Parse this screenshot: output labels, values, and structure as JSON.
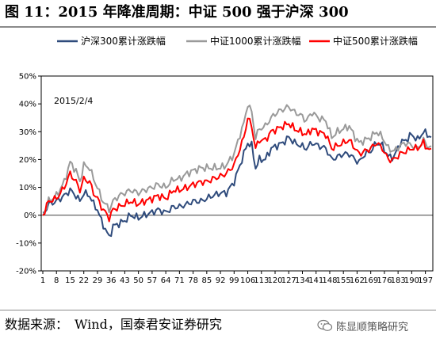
{
  "title": "图 11：2015 年降准周期：中证 500 强于沪深 300",
  "source": "数据来源：　Wind，国泰君安证券研究",
  "watermark": {
    "text": "陈显顺策略研究",
    "icon": "wechat-icon"
  },
  "chart_data": {
    "type": "line",
    "title": "",
    "xlabel": "",
    "ylabel": "",
    "annotation": "2015/2/4",
    "ylim": [
      -20,
      50
    ],
    "y_ticks": [
      "-20%",
      "-10%",
      "0%",
      "10%",
      "20%",
      "30%",
      "40%",
      "50%"
    ],
    "x_ticks": [
      "1",
      "8",
      "15",
      "22",
      "29",
      "36",
      "43",
      "50",
      "57",
      "64",
      "71",
      "78",
      "85",
      "92",
      "99",
      "106",
      "113",
      "120",
      "127",
      "134",
      "141",
      "148",
      "155",
      "162",
      "169",
      "176",
      "183",
      "190",
      "197"
    ],
    "x_count": 200,
    "grid": false,
    "legend_position": "top",
    "series": [
      {
        "name": "沪深300累计涨跌幅",
        "color": "#2f4b7c",
        "keypoints": [
          [
            1,
            0
          ],
          [
            4,
            4
          ],
          [
            8,
            5
          ],
          [
            12,
            7
          ],
          [
            15,
            9
          ],
          [
            18,
            7
          ],
          [
            20,
            5
          ],
          [
            22,
            8
          ],
          [
            25,
            7
          ],
          [
            27,
            4
          ],
          [
            29,
            2
          ],
          [
            31,
            -2
          ],
          [
            33,
            -5
          ],
          [
            35,
            -8
          ],
          [
            37,
            -4
          ],
          [
            40,
            -3
          ],
          [
            43,
            -2
          ],
          [
            46,
            0
          ],
          [
            50,
            -1
          ],
          [
            53,
            0
          ],
          [
            57,
            1
          ],
          [
            60,
            2
          ],
          [
            64,
            1
          ],
          [
            68,
            3
          ],
          [
            71,
            3
          ],
          [
            75,
            4
          ],
          [
            78,
            5
          ],
          [
            82,
            5
          ],
          [
            85,
            6
          ],
          [
            88,
            7
          ],
          [
            92,
            8
          ],
          [
            95,
            8
          ],
          [
            99,
            12
          ],
          [
            102,
            18
          ],
          [
            104,
            22
          ],
          [
            106,
            26
          ],
          [
            108,
            25
          ],
          [
            110,
            17
          ],
          [
            112,
            20
          ],
          [
            115,
            20
          ],
          [
            118,
            24
          ],
          [
            121,
            25
          ],
          [
            124,
            26
          ],
          [
            127,
            28
          ],
          [
            130,
            26
          ],
          [
            133,
            25
          ],
          [
            136,
            24
          ],
          [
            139,
            26
          ],
          [
            142,
            25
          ],
          [
            146,
            24
          ],
          [
            149,
            20
          ],
          [
            152,
            21
          ],
          [
            155,
            22
          ],
          [
            158,
            22
          ],
          [
            161,
            20
          ],
          [
            163,
            19
          ],
          [
            166,
            22
          ],
          [
            169,
            23
          ],
          [
            172,
            26
          ],
          [
            175,
            25
          ],
          [
            178,
            21
          ],
          [
            181,
            21
          ],
          [
            184,
            26
          ],
          [
            187,
            27
          ],
          [
            190,
            29
          ],
          [
            193,
            27
          ],
          [
            196,
            30
          ],
          [
            198,
            29
          ],
          [
            200,
            28
          ]
        ]
      },
      {
        "name": "中证1000累计涨跌幅",
        "color": "#9a9a9a",
        "keypoints": [
          [
            1,
            0
          ],
          [
            4,
            5
          ],
          [
            8,
            7
          ],
          [
            12,
            12
          ],
          [
            15,
            19
          ],
          [
            18,
            16
          ],
          [
            20,
            12
          ],
          [
            22,
            18
          ],
          [
            25,
            17
          ],
          [
            27,
            13
          ],
          [
            29,
            10
          ],
          [
            31,
            6
          ],
          [
            33,
            4
          ],
          [
            35,
            2
          ],
          [
            37,
            5
          ],
          [
            40,
            7
          ],
          [
            43,
            8
          ],
          [
            46,
            9
          ],
          [
            50,
            8
          ],
          [
            53,
            9
          ],
          [
            57,
            10
          ],
          [
            60,
            11
          ],
          [
            64,
            10
          ],
          [
            68,
            13
          ],
          [
            71,
            13
          ],
          [
            75,
            15
          ],
          [
            78,
            16
          ],
          [
            82,
            17
          ],
          [
            85,
            17
          ],
          [
            88,
            17
          ],
          [
            92,
            17
          ],
          [
            95,
            18
          ],
          [
            99,
            22
          ],
          [
            102,
            29
          ],
          [
            104,
            33
          ],
          [
            106,
            40
          ],
          [
            108,
            37
          ],
          [
            110,
            28
          ],
          [
            112,
            31
          ],
          [
            115,
            32
          ],
          [
            118,
            35
          ],
          [
            121,
            37
          ],
          [
            124,
            38
          ],
          [
            127,
            39
          ],
          [
            130,
            37
          ],
          [
            133,
            36
          ],
          [
            136,
            34
          ],
          [
            139,
            37
          ],
          [
            142,
            35
          ],
          [
            146,
            34
          ],
          [
            149,
            28
          ],
          [
            152,
            30
          ],
          [
            155,
            31
          ],
          [
            158,
            32
          ],
          [
            161,
            28
          ],
          [
            163,
            26
          ],
          [
            166,
            27
          ],
          [
            169,
            28
          ],
          [
            172,
            30
          ],
          [
            175,
            28
          ],
          [
            178,
            24
          ],
          [
            181,
            23
          ],
          [
            184,
            25
          ],
          [
            187,
            26
          ],
          [
            190,
            25
          ],
          [
            193,
            24
          ],
          [
            196,
            27
          ],
          [
            198,
            25
          ],
          [
            200,
            24
          ]
        ]
      },
      {
        "name": "中证500累计涨跌幅",
        "color": "#ff0000",
        "keypoints": [
          [
            1,
            0
          ],
          [
            4,
            5
          ],
          [
            8,
            6
          ],
          [
            12,
            10
          ],
          [
            15,
            15
          ],
          [
            18,
            12
          ],
          [
            20,
            9
          ],
          [
            22,
            13
          ],
          [
            25,
            12
          ],
          [
            27,
            8
          ],
          [
            29,
            6
          ],
          [
            31,
            3
          ],
          [
            33,
            1
          ],
          [
            35,
            -1
          ],
          [
            37,
            2
          ],
          [
            40,
            3
          ],
          [
            43,
            4
          ],
          [
            46,
            5
          ],
          [
            50,
            4
          ],
          [
            53,
            5
          ],
          [
            57,
            6
          ],
          [
            60,
            7
          ],
          [
            64,
            6
          ],
          [
            68,
            9
          ],
          [
            71,
            9
          ],
          [
            75,
            10
          ],
          [
            78,
            11
          ],
          [
            82,
            12
          ],
          [
            85,
            12
          ],
          [
            88,
            13
          ],
          [
            92,
            14
          ],
          [
            95,
            15
          ],
          [
            99,
            18
          ],
          [
            102,
            24
          ],
          [
            104,
            28
          ],
          [
            106,
            35
          ],
          [
            108,
            32
          ],
          [
            110,
            24
          ],
          [
            112,
            27
          ],
          [
            115,
            27
          ],
          [
            118,
            30
          ],
          [
            121,
            31
          ],
          [
            124,
            32
          ],
          [
            127,
            33
          ],
          [
            130,
            31
          ],
          [
            133,
            30
          ],
          [
            136,
            29
          ],
          [
            139,
            31
          ],
          [
            142,
            30
          ],
          [
            146,
            29
          ],
          [
            149,
            24
          ],
          [
            152,
            25
          ],
          [
            155,
            26
          ],
          [
            158,
            27
          ],
          [
            161,
            24
          ],
          [
            163,
            22
          ],
          [
            166,
            23
          ],
          [
            169,
            24
          ],
          [
            172,
            26
          ],
          [
            175,
            24
          ],
          [
            178,
            20
          ],
          [
            181,
            20
          ],
          [
            184,
            22
          ],
          [
            187,
            23
          ],
          [
            190,
            24
          ],
          [
            193,
            24
          ],
          [
            196,
            26
          ],
          [
            198,
            24
          ],
          [
            200,
            23
          ]
        ]
      }
    ]
  }
}
